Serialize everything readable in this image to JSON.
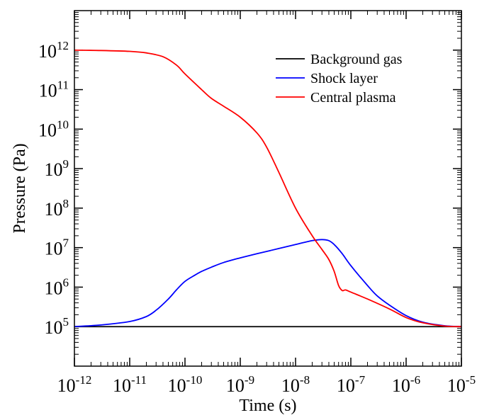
{
  "chart_data": {
    "type": "line",
    "title": "",
    "xlabel": "Time (s)",
    "ylabel": "Pressure (Pa)",
    "xscale": "log",
    "yscale": "log",
    "xlim": [
      1e-12,
      1e-05
    ],
    "ylim": [
      10000,
      10000000000000.0
    ],
    "x_ticks": [
      {
        "value": 1e-12,
        "base": "10",
        "exp": "-12"
      },
      {
        "value": 1e-11,
        "base": "10",
        "exp": "-11"
      },
      {
        "value": 1e-10,
        "base": "10",
        "exp": "-10"
      },
      {
        "value": 1e-09,
        "base": "10",
        "exp": "-9"
      },
      {
        "value": 1e-08,
        "base": "10",
        "exp": "-8"
      },
      {
        "value": 1e-07,
        "base": "10",
        "exp": "-7"
      },
      {
        "value": 1e-06,
        "base": "10",
        "exp": "-6"
      },
      {
        "value": 1e-05,
        "base": "10",
        "exp": "-5"
      }
    ],
    "y_ticks": [
      {
        "value": 100000.0,
        "base": "10",
        "exp": "5"
      },
      {
        "value": 1000000.0,
        "base": "10",
        "exp": "6"
      },
      {
        "value": 10000000.0,
        "base": "10",
        "exp": "7"
      },
      {
        "value": 100000000.0,
        "base": "10",
        "exp": "8"
      },
      {
        "value": 1000000000.0,
        "base": "10",
        "exp": "9"
      },
      {
        "value": 10000000000.0,
        "base": "10",
        "exp": "10"
      },
      {
        "value": 100000000000.0,
        "base": "10",
        "exp": "11"
      },
      {
        "value": 1000000000000.0,
        "base": "10",
        "exp": "12"
      }
    ],
    "grid": false,
    "legend_position": "top-right",
    "series": [
      {
        "name": "Background gas",
        "color": "#000000",
        "points": [
          [
            1e-12,
            100000.0
          ],
          [
            1e-05,
            100000.0
          ]
        ]
      },
      {
        "name": "Shock layer",
        "color": "#0000ff",
        "points": [
          [
            1e-12,
            100000.0
          ],
          [
            3e-12,
            110000.0
          ],
          [
            1e-11,
            135000.0
          ],
          [
            2e-11,
            180000.0
          ],
          [
            3e-11,
            260000.0
          ],
          [
            5e-11,
            500000.0
          ],
          [
            7e-11,
            850000.0
          ],
          [
            1e-10,
            1400000.0
          ],
          [
            1.5e-10,
            2000000.0
          ],
          [
            2e-10,
            2500000.0
          ],
          [
            3e-10,
            3200000.0
          ],
          [
            5e-10,
            4200000.0
          ],
          [
            1e-09,
            5500000.0
          ],
          [
            2e-09,
            7000000.0
          ],
          [
            5e-09,
            9500000.0
          ],
          [
            1e-08,
            12000000.0
          ],
          [
            2e-08,
            15000000.0
          ],
          [
            3e-08,
            16000000.0
          ],
          [
            4e-08,
            15000000.0
          ],
          [
            5e-08,
            12000000.0
          ],
          [
            7e-08,
            7000000.0
          ],
          [
            1e-07,
            3500000.0
          ],
          [
            2e-07,
            1100000.0
          ],
          [
            3e-07,
            600000.0
          ],
          [
            5e-07,
            350000.0
          ],
          [
            1e-06,
            190000.0
          ],
          [
            2e-06,
            130000.0
          ],
          [
            5e-06,
            105000.0
          ],
          [
            1e-05,
            100000.0
          ]
        ]
      },
      {
        "name": "Central plasma",
        "color": "#ff0000",
        "points": [
          [
            1e-12,
            1000000000000.0
          ],
          [
            3e-12,
            980000000000.0
          ],
          [
            1e-11,
            930000000000.0
          ],
          [
            2e-11,
            850000000000.0
          ],
          [
            4e-11,
            680000000000.0
          ],
          [
            7e-11,
            420000000000.0
          ],
          [
            1e-10,
            250000000000.0
          ],
          [
            2e-10,
            100000000000.0
          ],
          [
            3e-10,
            60000000000.0
          ],
          [
            5e-10,
            38000000000.0
          ],
          [
            1e-09,
            20000000000.0
          ],
          [
            2e-09,
            8000000000.0
          ],
          [
            3e-09,
            3500000000.0
          ],
          [
            5e-09,
            800000000.0
          ],
          [
            1e-08,
            100000000.0
          ],
          [
            2e-08,
            20000000.0
          ],
          [
            3e-08,
            9000000.0
          ],
          [
            4e-08,
            5000000.0
          ],
          [
            5e-08,
            2500000.0
          ],
          [
            6e-08,
            1100000.0
          ],
          [
            7e-08,
            820000.0
          ],
          [
            8e-08,
            850000.0
          ],
          [
            1e-07,
            750000.0
          ],
          [
            2e-07,
            500000.0
          ],
          [
            5e-07,
            280000.0
          ],
          [
            1e-06,
            170000.0
          ],
          [
            2e-06,
            125000.0
          ],
          [
            5e-06,
            103000.0
          ],
          [
            1e-05,
            100000.0
          ]
        ]
      }
    ]
  }
}
